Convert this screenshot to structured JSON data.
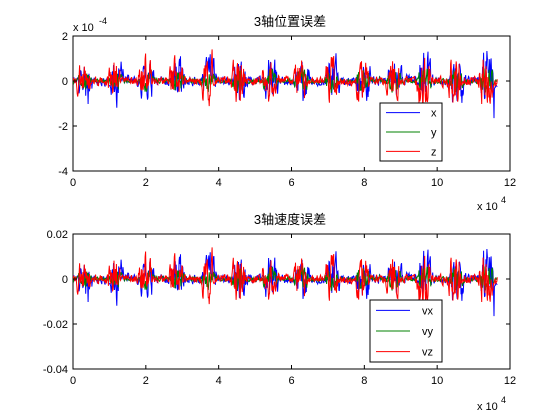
{
  "figure": {
    "background": "#ffffff"
  },
  "chart_data": [
    {
      "type": "line",
      "title": "3轴位置误差",
      "xlabel": "",
      "ylabel": "",
      "xlim": [
        0,
        120000
      ],
      "ylim": [
        -0.0004,
        0.0002
      ],
      "x_ticks": [
        0,
        20000,
        40000,
        60000,
        80000,
        100000,
        120000
      ],
      "x_tick_labels": [
        "0",
        "2",
        "4",
        "6",
        "8",
        "10",
        "12"
      ],
      "x_exponent": "x 10",
      "x_exponent_power": "4",
      "y_ticks": [
        0.0002,
        0,
        -0.0002,
        -0.0004
      ],
      "y_tick_labels": [
        "2",
        "0",
        "-2",
        "-4"
      ],
      "y_exponent": "x 10",
      "y_exponent_power": "-4",
      "grid": false,
      "legend": {
        "placement": "bottom-right",
        "entries": [
          "x",
          "y",
          "z"
        ]
      },
      "series": [
        {
          "name": "x",
          "color": "#0000ff",
          "amplitude_peak": 0.000165
        },
        {
          "name": "y",
          "color": "#008000",
          "amplitude_peak": 8e-05
        },
        {
          "name": "z",
          "color": "#ff0000",
          "amplitude_peak": 0.000155
        }
      ],
      "x_extent": 116500
    },
    {
      "type": "line",
      "title": "3轴速度误差",
      "xlabel": "",
      "ylabel": "",
      "xlim": [
        0,
        120000
      ],
      "ylim": [
        -0.04,
        0.02
      ],
      "x_ticks": [
        0,
        20000,
        40000,
        60000,
        80000,
        100000,
        120000
      ],
      "x_tick_labels": [
        "0",
        "2",
        "4",
        "6",
        "8",
        "10",
        "12"
      ],
      "x_exponent": "x 10",
      "x_exponent_power": "4",
      "y_ticks": [
        0.02,
        0,
        -0.02,
        -0.04
      ],
      "y_tick_labels": [
        "0.02",
        "0",
        "-0.02",
        "-0.04"
      ],
      "grid": false,
      "legend": {
        "placement": "bottom-right",
        "entries": [
          "vx",
          "vy",
          "vz"
        ]
      },
      "series": [
        {
          "name": "vx",
          "color": "#0000ff",
          "amplitude_peak": 0.0165
        },
        {
          "name": "vy",
          "color": "#008000",
          "amplitude_peak": 0.008
        },
        {
          "name": "vz",
          "color": "#ff0000",
          "amplitude_peak": 0.0155
        }
      ],
      "x_extent": 116500
    }
  ]
}
